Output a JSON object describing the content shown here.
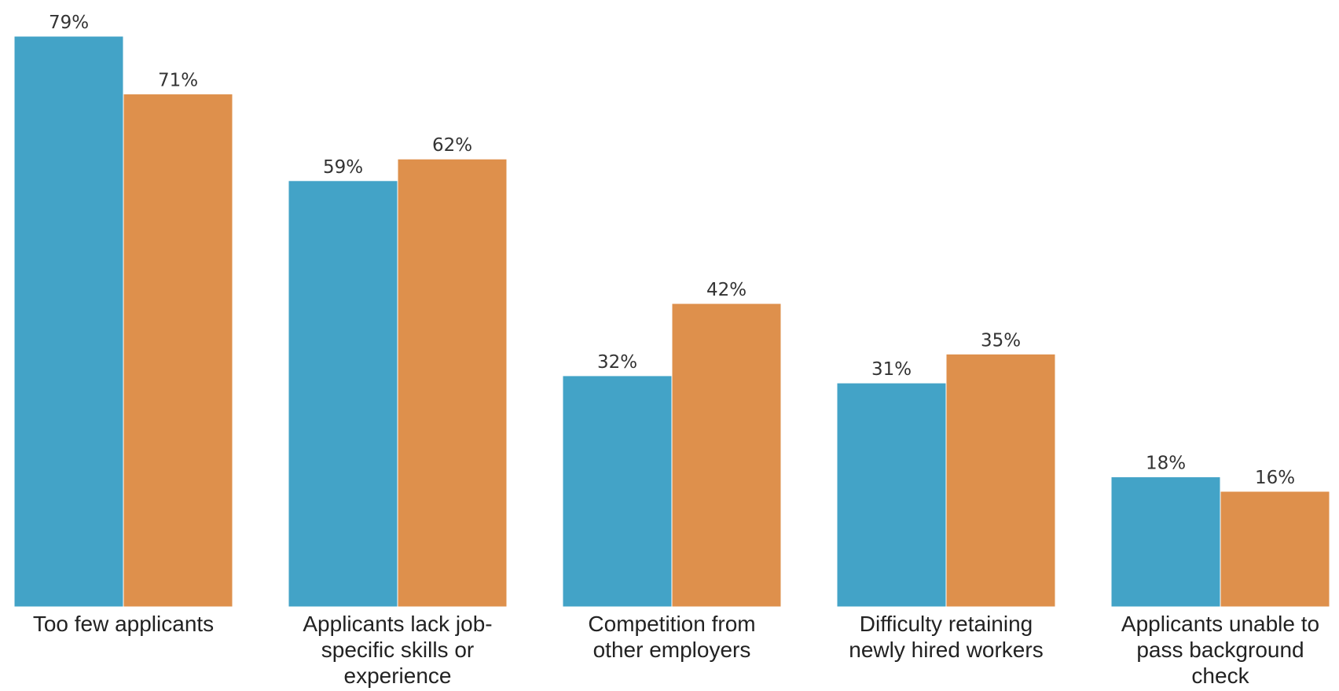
{
  "chart_data": {
    "type": "bar",
    "title": "",
    "xlabel": "",
    "ylabel": "",
    "ylim": [
      0,
      79
    ],
    "grid": false,
    "legend": "none",
    "categories": [
      [
        "Too few applicants"
      ],
      [
        "Applicants lack job-",
        "specific skills or",
        "experience"
      ],
      [
        "Competition from",
        "other employers"
      ],
      [
        "Difficulty retaining",
        "newly hired workers"
      ],
      [
        "Applicants unable to",
        "pass background",
        "check"
      ]
    ],
    "series": [
      {
        "color": "#43a3c7",
        "values": [
          79,
          59,
          32,
          31,
          18
        ],
        "labels": [
          "79%",
          "59%",
          "32%",
          "31%",
          "18%"
        ]
      },
      {
        "color": "#de904c",
        "values": [
          71,
          62,
          42,
          35,
          16
        ],
        "labels": [
          "71%",
          "62%",
          "42%",
          "35%",
          "16%"
        ]
      }
    ]
  }
}
